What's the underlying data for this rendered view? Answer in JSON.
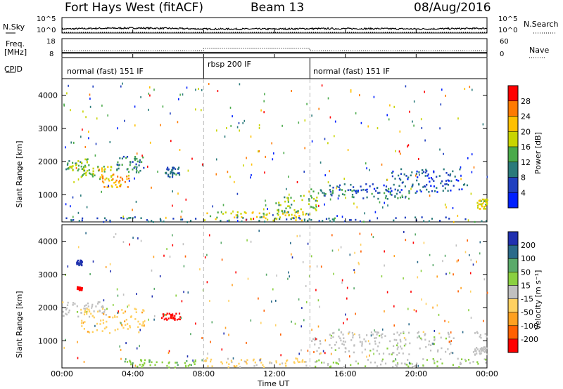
{
  "header": {
    "site_title": "Fort Hays West (fitACF)",
    "beam": "Beam 13",
    "date": "08/Aug/2016"
  },
  "scan_panels": {
    "nsky_label": "N.Sky",
    "nsearch_label": "N.Search",
    "freq_label_line1": "Freq.",
    "freq_label_line2": "[MHz]",
    "nave_label": "Nave",
    "cpid_label": "CPID",
    "nsky_ticks": [
      "10^5",
      "10^0"
    ],
    "nsearch_ticks": [
      "10^5",
      "10^0"
    ],
    "freq_ticks": [
      "18",
      "8"
    ],
    "nave_ticks": [
      "60",
      "0"
    ],
    "cpid_segments": [
      {
        "label": "normal (fast) 151 IF",
        "start_hour": 0,
        "end_hour": 8
      },
      {
        "label": "rbsp 200 IF",
        "start_hour": 8,
        "end_hour": 14
      },
      {
        "label": "normal (fast) 151 IF",
        "start_hour": 14,
        "end_hour": 24
      }
    ]
  },
  "power_panel": {
    "ylabel": "Slant Range [km]",
    "cbar_label": "Power [dB]",
    "cbar_ticks": [
      "28",
      "24",
      "20",
      "16",
      "12",
      "8",
      "4"
    ],
    "cbar_colors": [
      "#ff0000",
      "#ff7a00",
      "#ffc000",
      "#c8d400",
      "#4aaa4a",
      "#2a7a7a",
      "#2040c0",
      "#0020ff"
    ]
  },
  "velocity_panel": {
    "ylabel": "Slant Range [km]",
    "cbar_label": "Velocity [m s⁻¹]",
    "cbar_ticks": [
      "200",
      "100",
      "50",
      "15",
      "-15",
      "-50",
      "-100",
      "-200"
    ],
    "cbar_colors": [
      "#2030b0",
      "#2a6a8a",
      "#5aaa6a",
      "#8ad040",
      "#c0c0c0",
      "#ffd060",
      "#ffa020",
      "#ff6000",
      "#ff0000"
    ]
  },
  "x_axis": {
    "label": "Time UT",
    "ticks": [
      "00:00",
      "04:00",
      "08:00",
      "12:00",
      "16:00",
      "20:00",
      "00:00"
    ]
  },
  "y_axis": {
    "ticks": [
      "4000",
      "3000",
      "2000",
      "1000"
    ]
  },
  "chart_data": [
    {
      "type": "line",
      "title": "Fort Hays West (fitACF) Beam 13 08/Aug/2016",
      "panel": "N.Sky / N.Search",
      "x_range_hours": [
        0,
        24
      ],
      "ylim_log10": [
        0,
        5
      ],
      "series": [
        {
          "name": "N.Sky",
          "x": [
            0,
            2,
            4,
            6,
            8,
            10,
            12,
            14,
            16,
            18,
            20,
            22,
            24
          ],
          "values_log10": [
            1.3,
            1.5,
            1.6,
            1.5,
            1.3,
            1.3,
            1.3,
            1.4,
            1.4,
            1.4,
            1.3,
            1.4,
            1.5
          ]
        },
        {
          "name": "N.Search",
          "x": [
            0,
            24
          ],
          "values_log10": [
            0,
            0
          ]
        }
      ]
    },
    {
      "type": "line",
      "panel": "Freq. / Nave",
      "x_range_hours": [
        0,
        24
      ],
      "series": [
        {
          "name": "Freq. [MHz]",
          "x": [
            0,
            8,
            14,
            24
          ],
          "values": [
            10.5,
            10.5,
            10.5,
            10.5
          ],
          "ylim": [
            8,
            18
          ]
        },
        {
          "name": "Nave",
          "x": [
            0,
            8,
            8,
            14,
            14,
            24
          ],
          "values": [
            21,
            21,
            29,
            29,
            21,
            21
          ],
          "ylim": [
            0,
            60
          ]
        }
      ]
    },
    {
      "type": "heatmap",
      "panel": "Power [dB]",
      "x_range_hours": [
        0,
        24
      ],
      "ylim": [
        180,
        4500
      ],
      "ylabel": "Slant Range [km]",
      "xlabel": "Time UT",
      "value_range": [
        0,
        30
      ],
      "blobs": [
        {
          "t": [
            0.2,
            1.5
          ],
          "range": [
            1750,
            2100
          ],
          "value": 14
        },
        {
          "t": [
            1.0,
            2.8
          ],
          "range": [
            1500,
            1900
          ],
          "value": 16
        },
        {
          "t": [
            2.2,
            3.8
          ],
          "range": [
            1250,
            1650
          ],
          "value": 22
        },
        {
          "t": [
            3.0,
            4.6
          ],
          "range": [
            1700,
            2200
          ],
          "value": 10
        },
        {
          "t": [
            5.8,
            6.6
          ],
          "range": [
            1550,
            1850
          ],
          "value": 8
        },
        {
          "t": [
            14.0,
            20.0
          ],
          "range": [
            900,
            1200
          ],
          "value": 10
        },
        {
          "t": [
            15.0,
            23.0
          ],
          "range": [
            1100,
            1350
          ],
          "value": 6
        },
        {
          "t": [
            18.5,
            22.5
          ],
          "range": [
            1250,
            1800
          ],
          "value": 6
        },
        {
          "t": [
            23.4,
            24.0
          ],
          "range": [
            600,
            900
          ],
          "value": 18
        },
        {
          "t": [
            12.0,
            14.5
          ],
          "range": [
            450,
            1000
          ],
          "value": 14
        },
        {
          "t": [
            0.0,
            24.0
          ],
          "range": [
            200,
            350
          ],
          "value": 8
        },
        {
          "t": [
            8.0,
            14.0
          ],
          "range": [
            250,
            500
          ],
          "value": 18
        }
      ]
    },
    {
      "type": "heatmap",
      "panel": "Velocity [m s⁻¹]",
      "x_range_hours": [
        0,
        24
      ],
      "ylim": [
        180,
        4500
      ],
      "ylabel": "Slant Range [km]",
      "xlabel": "Time UT",
      "value_range": [
        -250,
        250
      ],
      "blobs": [
        {
          "t": [
            0.0,
            2.5
          ],
          "range": [
            1750,
            2200
          ],
          "value": 0
        },
        {
          "t": [
            1.0,
            4.6
          ],
          "range": [
            1250,
            2000
          ],
          "value": -60
        },
        {
          "t": [
            5.6,
            6.7
          ],
          "range": [
            1650,
            1850
          ],
          "value": -220
        },
        {
          "t": [
            0.8,
            1.1
          ],
          "range": [
            2550,
            2650
          ],
          "value": -230
        },
        {
          "t": [
            0.8,
            1.1
          ],
          "range": [
            3300,
            3450
          ],
          "value": 220
        },
        {
          "t": [
            3.5,
            7.5
          ],
          "range": [
            220,
            450
          ],
          "value": 60
        },
        {
          "t": [
            8.0,
            14.0
          ],
          "range": [
            220,
            500
          ],
          "value": -40
        },
        {
          "t": [
            14.0,
            22.0
          ],
          "range": [
            600,
            1150
          ],
          "value": 0
        },
        {
          "t": [
            15.0,
            24.0
          ],
          "range": [
            1100,
            1300
          ],
          "value": 0
        },
        {
          "t": [
            23.2,
            24.0
          ],
          "range": [
            600,
            850
          ],
          "value": 0
        },
        {
          "t": [
            14.0,
            24.0
          ],
          "range": [
            220,
            500
          ],
          "value": 30
        }
      ]
    }
  ]
}
